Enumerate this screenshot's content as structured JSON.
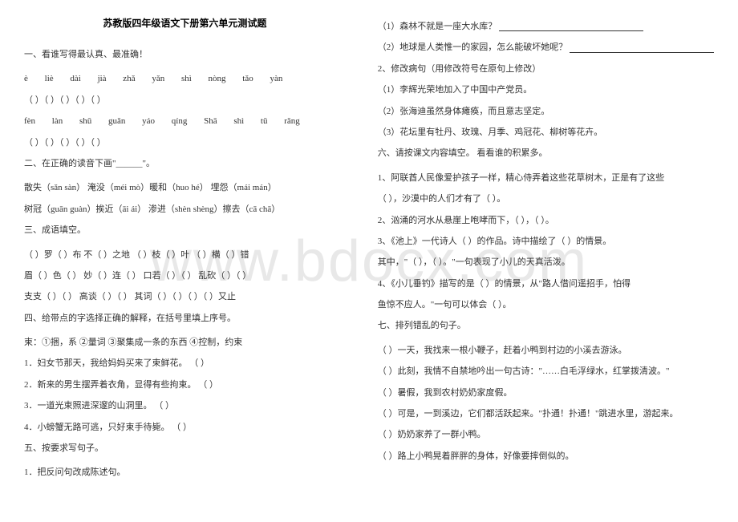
{
  "watermark": "www.bdocx.com",
  "title": "苏教版四年级语文下册第六单元测试题",
  "left": {
    "s1_heading": "一、看谁写得最认真、最准确！",
    "pinyin_row1": "è liè        dài jià        zhǎ yǎn        shì nòng        tǎo yàn",
    "paren_row1": "（        ）（        ）（        ）（        ）（        ）",
    "pinyin_row2": "fèn làn        shū guǎn        yáo qíng        Shā shì        tū rǎng",
    "paren_row2": "（        ）（        ）（        ）（        ）（        ）",
    "s2_heading": "二、在正确的读音下画\"______\"。",
    "s2_line1": "散失（sǎn sàn）  淹没（méi mò）暖和（huo hé）    埋怨（mái mán）",
    "s2_line2": "树冠（guān guàn）挨近（āi ái）  渗进（shèn shèng）擦去（cā chā）",
    "s3_heading": "三、成语填空。",
    "s3_line1": "（    ）罗（    ）布    不（    ）之地    （    ）枝（    ）叶    （    ）横（    ）错",
    "s3_line2": "眉（    ）色（    ）    妙（    ）连（    ）    口若（    ）（    ）    乱砍（    ）（    ）",
    "s3_line3": "支支（    ）（    ）    高谈（    ）（    ）    其词（    ）（    ）（    ）（    ）又止",
    "s4_heading": "四、给带点的字选择正确的解释，在括号里填上序号。",
    "s4_options": "束：①捆，系    ②量词    ③聚集成一条的东西    ④控制，约束",
    "s4_q1": "1．妇女节那天，我给妈妈买来了束鲜花。            （        ）",
    "s4_q2": "2．新来的男生摆弄着衣角，显得有些拘束。          （        ）",
    "s4_q3": "3．一道光束照进深邃的山洞里。                    （        ）",
    "s4_q4": "4．小螃蟹无路可逃，只好束手待毙。                （        ）",
    "s5_heading": "五、按要求写句子。",
    "s5_q1": "1．把反问句改成陈述句。"
  },
  "right": {
    "r1": "（1）森林不就是一座大水库？",
    "r2": "（2）地球是人类惟一的家园，怎么能破坏她呢？",
    "r3": "2、修改病句（用修改符号在原句上修改）",
    "r4": "（1）李辉光荣地加入了中国中产党员。",
    "r5": "（2）张海迪虽然身体瘫痪，而且意志坚定。",
    "r6": "（3）花坛里有牡丹、玫瑰、月季、鸡冠花、柳树等花卉。",
    "s6_heading": "六、请按课文内容填空。    看看谁的积累多。",
    "s6_q1a": "1、阿联酋人民像爱护孩子一样，精心侍弄着这些花草树木，正是有了这些",
    "s6_q1b": "（                        ），沙漠中的人们才有了（                        ）。",
    "s6_q2": "2、汹涌的河水从悬崖上咆哮而下，（            ），（            ）。",
    "s6_q3a": "3、《池上》一代诗人（            ）的作品。诗中描绘了（            ）的情景。",
    "s6_q3b": "其中，\"（            ），（            ）。\"一句表现了小儿的天真活泼。",
    "s6_q4a": "4、《小儿垂钓》描写的是（                        ）的情景，从\"路人借问遥招手，怕得",
    "s6_q4b": "鱼惊不应人。\"一句可以体会（                                                ）。",
    "s7_heading": "七、排列错乱的句子。",
    "s7_q1": "（    ）一天，我找来一根小鞭子，赶着小鸭到村边的小溪去游泳。",
    "s7_q2": "（    ）此刻，我情不自禁地吟出一句古诗：\"……白毛浮绿水，红掌拨清波。\"",
    "s7_q3": "（    ）暑假，我到农村奶奶家度假。",
    "s7_q4": "（    ）可是，一到溪边，它们都活跃起来。\"扑通！扑通！\"跳进水里，游起来。",
    "s7_q5": "（    ）奶奶家养了一群小鸭。",
    "s7_q6": "（    ）路上小鸭晃着胖胖的身体，好像要摔倒似的。"
  }
}
